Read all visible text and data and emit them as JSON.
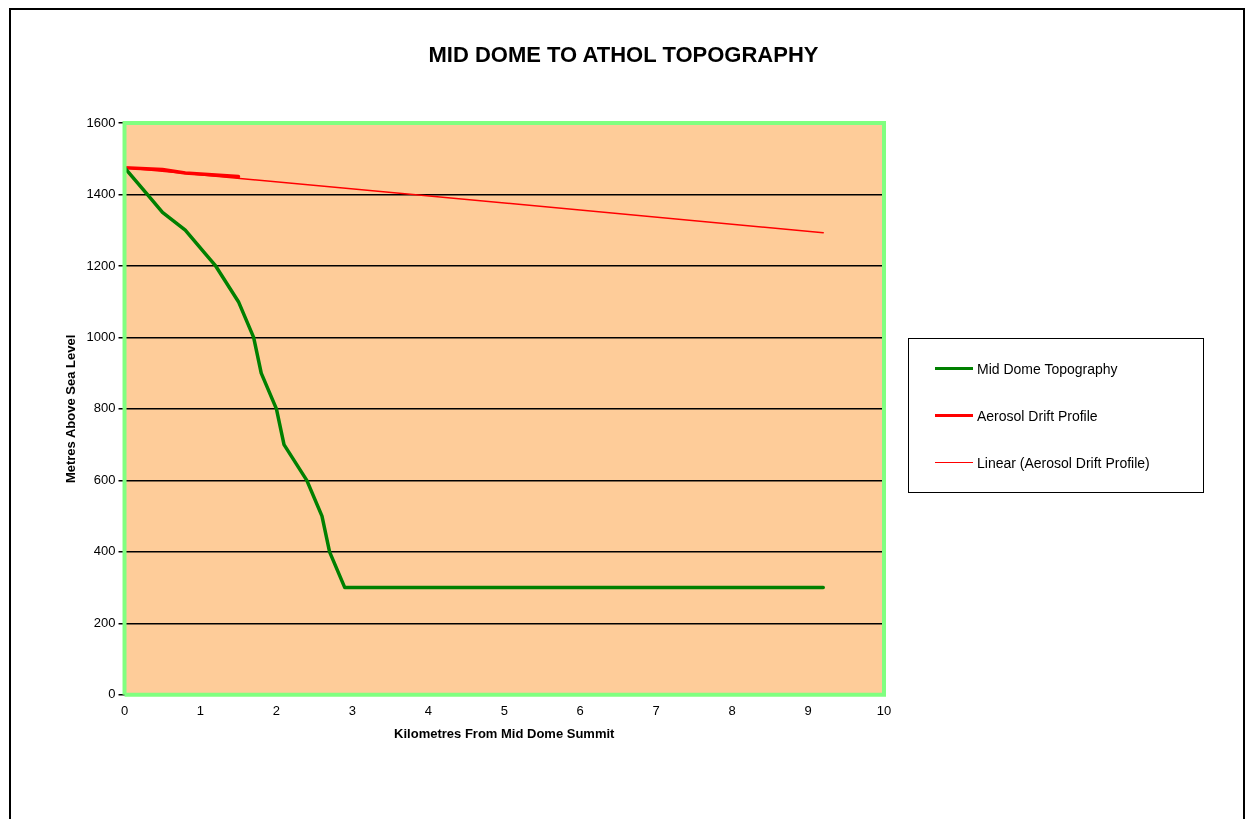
{
  "chart_data": {
    "type": "line",
    "title": "MID DOME TO ATHOL TOPOGRAPHY",
    "xlabel": "Kilometres From Mid Dome Summit",
    "ylabel": "Metres Above Sea Level",
    "series": [
      {
        "name": "Mid Dome Topography",
        "color": "#008000",
        "x": [
          0,
          0.3,
          0.5,
          0.8,
          1.2,
          1.5,
          1.7,
          1.8,
          2.0,
          2.1,
          2.4,
          2.6,
          2.7,
          2.9,
          9.2
        ],
        "values": [
          1475,
          1400,
          1350,
          1300,
          1200,
          1100,
          1000,
          900,
          800,
          700,
          600,
          500,
          400,
          300,
          300
        ]
      },
      {
        "name": "Aerosol Drift Profile",
        "color": "#ff0000",
        "x": [
          0,
          0.5,
          0.8,
          1.5
        ],
        "values": [
          1475,
          1470,
          1460,
          1450
        ]
      },
      {
        "name": "Linear (Aerosol Drift Profile)",
        "color": "#ff0000",
        "x": [
          0,
          9.2
        ],
        "values": [
          1475,
          1293
        ]
      }
    ],
    "xlim": [
      0,
      10
    ],
    "xticks": [
      0,
      1,
      2,
      3,
      4,
      5,
      6,
      7,
      8,
      9,
      10
    ],
    "ylim": [
      0,
      1600
    ],
    "yticks": [
      0,
      200,
      400,
      600,
      800,
      1000,
      1200,
      1400,
      1600
    ],
    "grid": "y",
    "legend": "right",
    "marker": "none",
    "line_style": "solid"
  }
}
